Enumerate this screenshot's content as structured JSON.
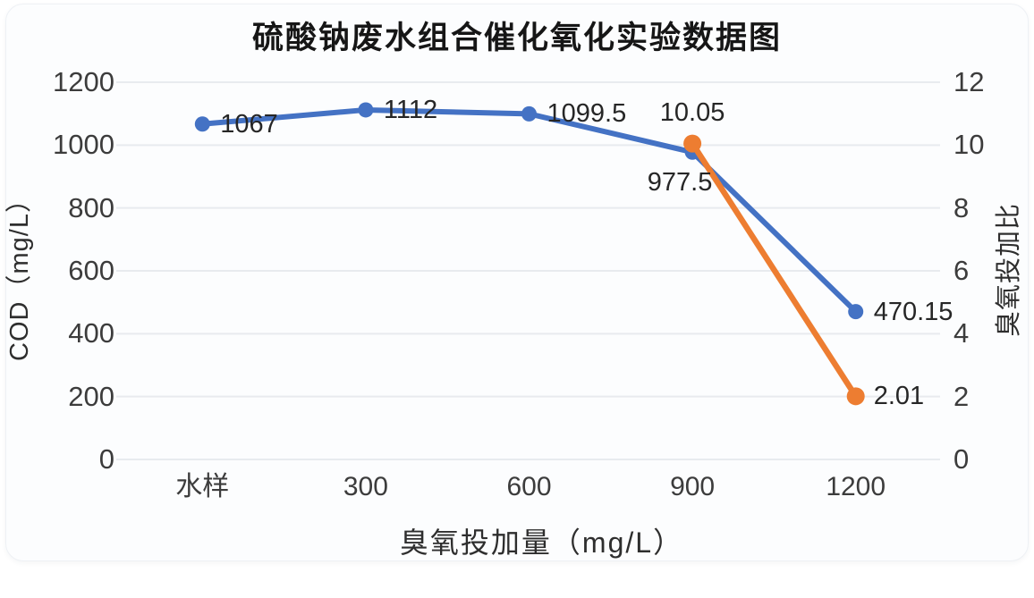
{
  "page": {
    "background": "#ffffff",
    "card_background": "#fcfdfe",
    "card_border": "#eef1f5"
  },
  "chart_data": {
    "type": "line",
    "title": "硫酸钠废水组合催化氧化实验数据图",
    "xlabel": "臭氧投加量（mg/L）",
    "ylabel_left": "COD（mg/L）",
    "ylabel_right": "臭氧投加比",
    "categories": [
      "水样",
      "300",
      "600",
      "900",
      "1200"
    ],
    "left_axis": {
      "min": 0,
      "max": 1200,
      "ticks": [
        1200,
        1000,
        800,
        600,
        400,
        200,
        0
      ]
    },
    "right_axis": {
      "min": 0,
      "max": 12,
      "ticks": [
        12,
        10,
        8,
        6,
        4,
        2,
        0
      ]
    },
    "grid": true,
    "grid_color": "#e8ebef",
    "tick_text_color": "#3c3c3c",
    "legend": "none",
    "series": [
      {
        "id": "cod",
        "name": "COD（mg/L）",
        "axis": "left",
        "color": "#4472C4",
        "line_width": 6,
        "marker_radius": 8.5,
        "x_indices": [
          0,
          1,
          2,
          3,
          4
        ],
        "values": [
          1067,
          1112,
          1099.5,
          977.5,
          470.15
        ],
        "labels": [
          "1067",
          "1112",
          "1099.5",
          "977.5",
          "470.15"
        ],
        "label_positions": [
          "right",
          "right",
          "right",
          "below-left",
          "right"
        ]
      },
      {
        "id": "ozone-ratio",
        "name": "臭氧投加比",
        "axis": "right",
        "color": "#ED7D31",
        "line_width": 6.5,
        "marker_radius": 10,
        "x_indices": [
          3,
          4
        ],
        "values": [
          10.05,
          2.01
        ],
        "labels": [
          "10.05",
          "2.01"
        ],
        "label_positions": [
          "above",
          "right"
        ]
      }
    ]
  }
}
